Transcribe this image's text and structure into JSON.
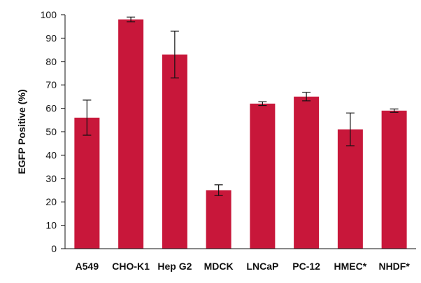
{
  "chart_data": {
    "type": "bar",
    "title": "",
    "xlabel": "",
    "ylabel": "EGFP Positive  (%)",
    "ylim": [
      0,
      100
    ],
    "yticks": [
      0,
      10,
      20,
      30,
      40,
      50,
      60,
      70,
      80,
      90,
      100
    ],
    "grid": false,
    "categories": [
      "A549",
      "CHO-K1",
      "Hep G2",
      "MDCK",
      "LNCaP",
      "PC-12",
      "HMEC*",
      "NHDF*"
    ],
    "series": [
      {
        "values": [
          56,
          98,
          83,
          25,
          62,
          65,
          51,
          59
        ],
        "error": [
          7.5,
          1,
          10,
          2.3,
          0.8,
          1.8,
          7,
          0.7
        ]
      }
    ],
    "colors": {
      "bar": "#C8173A",
      "axis": "#111111",
      "error_bar": "#111111"
    }
  }
}
